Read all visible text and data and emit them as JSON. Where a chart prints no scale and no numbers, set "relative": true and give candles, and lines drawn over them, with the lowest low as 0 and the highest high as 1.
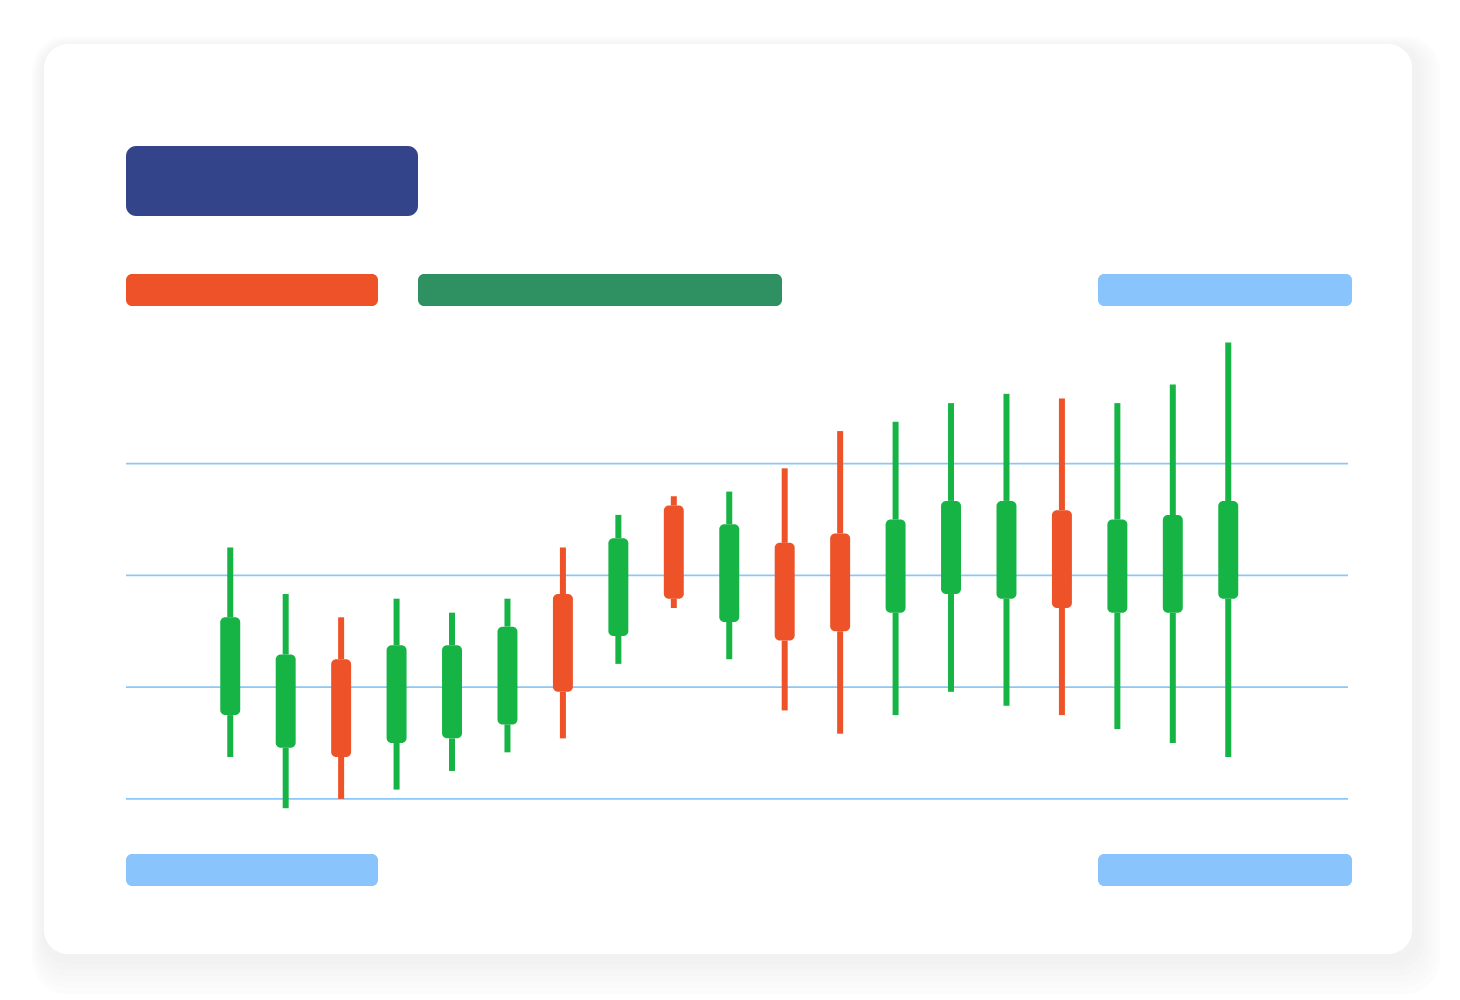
{
  "chart_data": {
    "type": "candlestick",
    "relative": true,
    "ref_lines": [
      {
        "axis": "y",
        "value": 0.02,
        "color": "#8cc7f7"
      },
      {
        "axis": "y",
        "value": 0.26,
        "color": "#8cc7f7"
      },
      {
        "axis": "y",
        "value": 0.5,
        "color": "#8cc7f7"
      },
      {
        "axis": "y",
        "value": 0.74,
        "color": "#8cc7f7"
      }
    ],
    "categories": [
      null,
      null,
      null,
      null,
      null,
      null,
      null,
      null,
      null,
      null,
      null,
      null,
      null,
      null,
      null,
      null,
      null,
      null,
      null
    ],
    "ohlc": [
      [
        0.2,
        0.56,
        0.11,
        0.41
      ],
      [
        0.13,
        0.46,
        0,
        0.33
      ],
      [
        0.32,
        0.41,
        0.02,
        0.11
      ],
      [
        0.14,
        0.45,
        0.04,
        0.35
      ],
      [
        0.15,
        0.42,
        0.08,
        0.35
      ],
      [
        0.18,
        0.45,
        0.12,
        0.39
      ],
      [
        0.46,
        0.56,
        0.15,
        0.25
      ],
      [
        0.37,
        0.63,
        0.31,
        0.58
      ],
      [
        0.65,
        0.67,
        0.43,
        0.45
      ],
      [
        0.4,
        0.68,
        0.32,
        0.61
      ],
      [
        0.57,
        0.73,
        0.21,
        0.36
      ],
      [
        0.59,
        0.81,
        0.16,
        0.38
      ],
      [
        0.42,
        0.83,
        0.2,
        0.62
      ],
      [
        0.46,
        0.87,
        0.25,
        0.66
      ],
      [
        0.45,
        0.89,
        0.22,
        0.66
      ],
      [
        0.64,
        0.88,
        0.2,
        0.43
      ],
      [
        0.42,
        0.87,
        0.17,
        0.62
      ],
      [
        0.42,
        0.91,
        0.14,
        0.63
      ],
      [
        0.45,
        1,
        0.11,
        0.66
      ]
    ],
    "colors": [
      "#16b445",
      "#16b445",
      "#ee5229",
      "#16b445",
      "#16b445",
      "#16b445",
      "#ee5229",
      "#16b445",
      "#ee5229",
      "#16b445",
      "#ee5229",
      "#ee5229",
      "#16b445",
      "#16b445",
      "#16b445",
      "#ee5229",
      "#16b445",
      "#16b445",
      "#16b445"
    ]
  }
}
